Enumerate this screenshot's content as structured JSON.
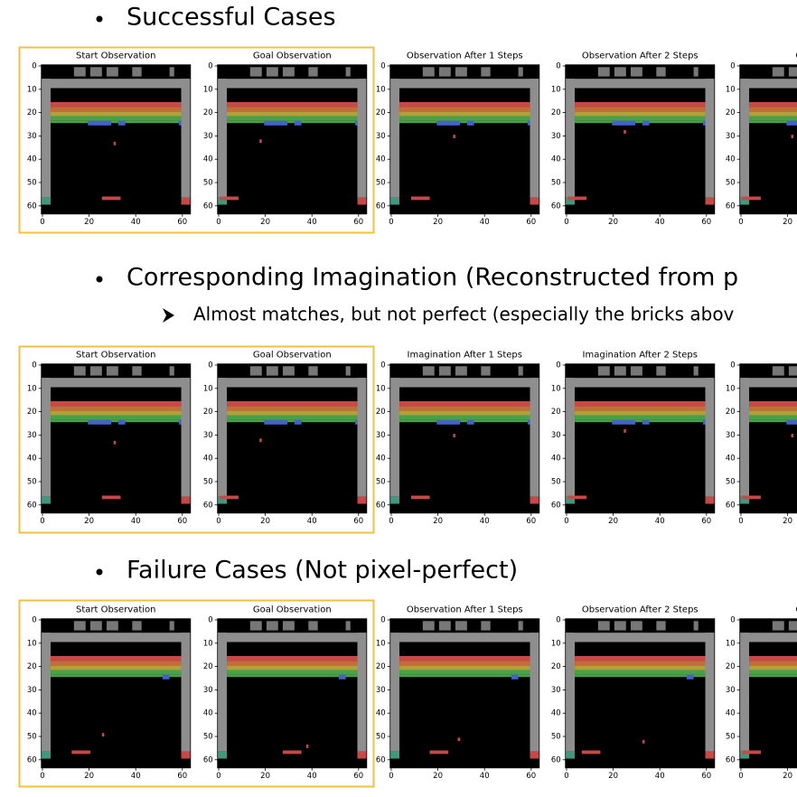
{
  "sections": [
    {
      "heading": "Successful Cases",
      "panels": [
        "Start Observation",
        "Goal Observation",
        "Observation After 1 Steps",
        "Observation After 2 Steps",
        "Observa"
      ]
    },
    {
      "heading": "Corresponding Imagination (Reconstructed from p",
      "note": "Almost matches, but not perfect (especially the bricks abov",
      "panels": [
        "Start Observation",
        "Goal Observation",
        "Imagination After 1 Steps",
        "Imagination After 2 Steps",
        "Imagina"
      ]
    },
    {
      "heading": "Failure Cases (Not pixel-perfect)",
      "panels": [
        "Start Observation",
        "Goal Observation",
        "Observation After 1 Steps",
        "Observation After 2 Steps",
        "Observa"
      ]
    }
  ],
  "axes": {
    "yticks": [
      0,
      10,
      20,
      30,
      40,
      50,
      60
    ],
    "xticks": [
      0,
      20,
      40,
      60
    ]
  }
}
